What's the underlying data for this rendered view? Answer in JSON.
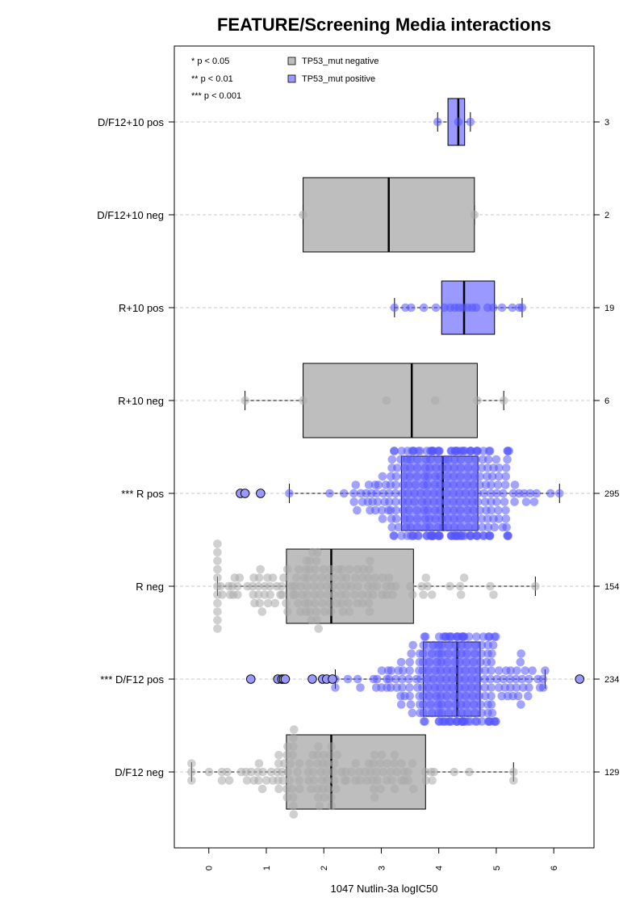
{
  "chart_data": {
    "type": "boxplot",
    "title": "FEATURE/Screening Media interactions",
    "xlabel": "1047 Nutlin-3a logIC50",
    "xlim": [
      -0.6,
      6.7
    ],
    "xticks": [
      "0",
      "1",
      "2",
      "3",
      "4",
      "5",
      "6"
    ],
    "significance_legend": [
      "* p < 0.05",
      "** p < 0.01",
      "*** p < 0.001"
    ],
    "legend": [
      {
        "name": "TP53_mut negative",
        "color": "#bebebe"
      },
      {
        "name": "TP53_mut positive",
        "color": "#9999ff"
      }
    ],
    "colors": {
      "neg_box": "#bebebe",
      "pos_box": "#9999ff",
      "neg_point": "#a9a9a9",
      "pos_point": "#5555ff",
      "grid": "#c8c8c8"
    },
    "groups": [
      {
        "label": "D/F12+10 pos",
        "status": "positive",
        "count": "3",
        "whisker_low": 3.98,
        "q1": 4.16,
        "median": 4.34,
        "q3": 4.45,
        "whisker_high": 4.55,
        "outliers": [],
        "points": [
          3.98,
          4.34,
          4.55
        ]
      },
      {
        "label": "D/F12+10 neg",
        "status": "negative",
        "count": "2",
        "whisker_low": 1.64,
        "q1": 1.64,
        "median": 3.13,
        "q3": 4.62,
        "whisker_high": 4.62,
        "outliers": [],
        "points": [
          1.64,
          4.62
        ]
      },
      {
        "label": "R+10 pos",
        "status": "positive",
        "count": "19",
        "whisker_low": 3.23,
        "q1": 4.05,
        "median": 4.44,
        "q3": 4.97,
        "whisker_high": 5.45,
        "outliers": [],
        "points": [
          3.23,
          3.42,
          3.52,
          3.74,
          3.95,
          4.1,
          4.2,
          4.28,
          4.35,
          4.42,
          4.5,
          4.58,
          4.65,
          4.85,
          4.95,
          5.1,
          5.28,
          5.4,
          5.45
        ]
      },
      {
        "label": "R+10 neg",
        "status": "negative",
        "count": "6",
        "whisker_low": 0.63,
        "q1": 1.64,
        "median": 3.53,
        "q3": 4.67,
        "whisker_high": 5.13,
        "outliers": [],
        "points": [
          0.63,
          1.64,
          3.09,
          3.94,
          4.67,
          5.13
        ]
      },
      {
        "label": "*** R pos",
        "status": "positive",
        "count": "295",
        "whisker_low": 1.4,
        "q1": 3.35,
        "median": 4.07,
        "q3": 4.68,
        "whisker_high": 6.1,
        "outliers": [
          0.55,
          0.63,
          0.9
        ],
        "dist": {
          "n": 295,
          "center": 4.07,
          "spread": 0.75,
          "min": 1.4,
          "max": 6.1
        }
      },
      {
        "label": "R neg",
        "status": "negative",
        "count": "154",
        "whisker_low": 0.15,
        "q1": 1.35,
        "median": 2.13,
        "q3": 3.56,
        "whisker_high": 5.68,
        "outliers": [],
        "dist": {
          "n": 154,
          "center": 1.9,
          "spread": 1.1,
          "min": 0.15,
          "max": 5.68
        }
      },
      {
        "label": "*** D/F12 pos",
        "status": "positive",
        "count": "234",
        "whisker_low": 2.2,
        "q1": 3.73,
        "median": 4.32,
        "q3": 4.72,
        "whisker_high": 5.85,
        "outliers": [
          0.73,
          1.2,
          1.27,
          1.3,
          1.33,
          1.8,
          1.98,
          2.05,
          2.15,
          6.45
        ],
        "dist": {
          "n": 234,
          "center": 4.3,
          "spread": 0.65,
          "min": 2.2,
          "max": 5.85
        }
      },
      {
        "label": "D/F12 neg",
        "status": "negative",
        "count": "129",
        "whisker_low": -0.3,
        "q1": 1.35,
        "median": 2.13,
        "q3": 3.77,
        "whisker_high": 5.3,
        "outliers": [],
        "dist": {
          "n": 129,
          "center": 2.0,
          "spread": 1.2,
          "min": -0.3,
          "max": 5.3
        }
      }
    ]
  }
}
